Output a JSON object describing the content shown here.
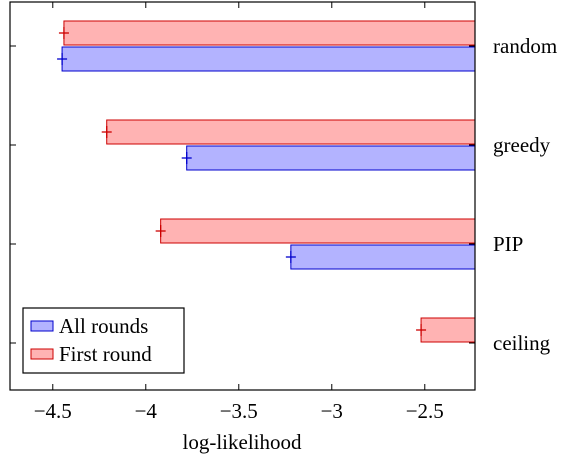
{
  "chart_data": {
    "type": "bar",
    "orientation": "horizontal",
    "categories": [
      "random",
      "greedy",
      "PIP",
      "ceiling"
    ],
    "series": [
      {
        "name": "All rounds",
        "values": [
          -4.45,
          -3.78,
          -3.22,
          null
        ],
        "fill": "#b3b3ff",
        "stroke": "#0000cc"
      },
      {
        "name": "First round",
        "values": [
          -4.44,
          -4.21,
          -3.92,
          -2.52
        ],
        "fill": "#ffb3b3",
        "stroke": "#cc0000"
      }
    ],
    "xlabel": "log-likelihood",
    "xlim": [
      -4.73,
      -2.23
    ],
    "xticks": [
      -4.5,
      -4,
      -3.5,
      -3,
      -2.5
    ],
    "xtick_labels": [
      "−4.5",
      "−4",
      "−3.5",
      "−3",
      "−2.5"
    ],
    "legend_position": "bottom-left",
    "grid": false
  }
}
